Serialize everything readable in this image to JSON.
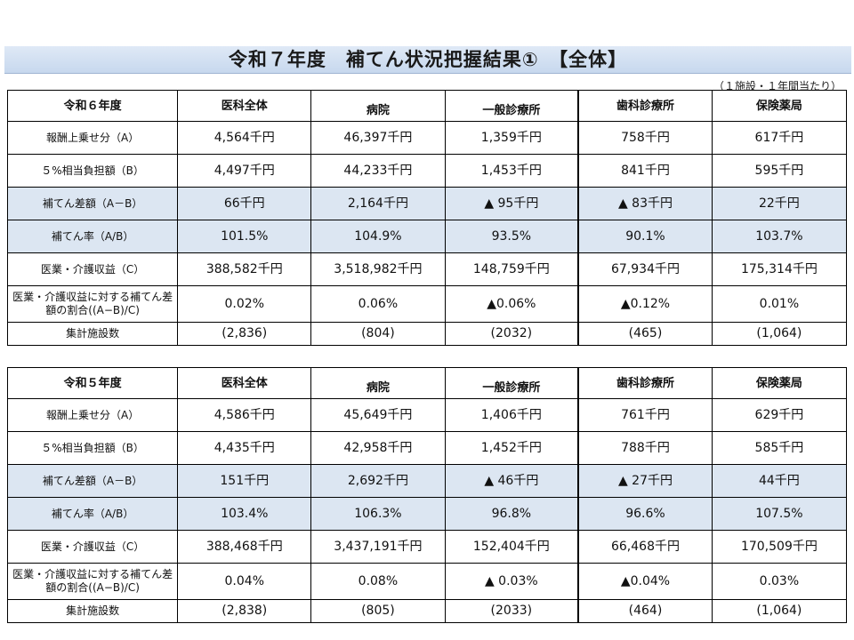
{
  "title": "令和７年度　補てん状況把握結果①　【全体】",
  "unit_note": "（１施設・１年間当たり）",
  "columns": [
    "医科全体",
    "病院",
    "一般診療所",
    "歯科診療所",
    "保険薬局"
  ],
  "rows": [
    "報酬上乗せ分（A）",
    "５%相当負担額（B）",
    "補てん差額（A－B）",
    "補てん率（A/B）",
    "医業・介護収益（C）",
    "医業・介護収益に対する補てん差額の割合((A−B)/C)",
    "集計施設数"
  ],
  "tables": [
    {
      "year": "令和６年度",
      "values": [
        [
          "4,564千円",
          "46,397千円",
          "1,359千円",
          "758千円",
          "617千円"
        ],
        [
          "4,497千円",
          "44,233千円",
          "1,453千円",
          "841千円",
          "595千円"
        ],
        [
          "66千円",
          "2,164千円",
          "▲ 95千円",
          "▲ 83千円",
          "22千円"
        ],
        [
          "101.5%",
          "104.9%",
          "93.5%",
          "90.1%",
          "103.7%"
        ],
        [
          "388,582千円",
          "3,518,982千円",
          "148,759千円",
          "67,934千円",
          "175,314千円"
        ],
        [
          "0.02%",
          "0.06%",
          "▲0.06%",
          "▲0.12%",
          "0.01%"
        ],
        [
          "(2,836)",
          "(804)",
          "(2032)",
          "(465)",
          "(1,064)"
        ]
      ]
    },
    {
      "year": "令和５年度",
      "values": [
        [
          "4,586千円",
          "45,649千円",
          "1,406千円",
          "761千円",
          "629千円"
        ],
        [
          "4,435千円",
          "42,958千円",
          "1,452千円",
          "788千円",
          "585千円"
        ],
        [
          "151千円",
          "2,692千円",
          "▲ 46千円",
          "▲ 27千円",
          "44千円"
        ],
        [
          "103.4%",
          "106.3%",
          "96.8%",
          "96.6%",
          "107.5%"
        ],
        [
          "388,468千円",
          "3,437,191千円",
          "152,404千円",
          "66,468千円",
          "170,509千円"
        ],
        [
          "0.04%",
          "0.08%",
          "▲ 0.03%",
          "▲0.04%",
          "0.03%"
        ],
        [
          "(2,838)",
          "(805)",
          "(2033)",
          "(464)",
          "(1,064)"
        ]
      ]
    }
  ],
  "colors": {
    "title_bg": "#c7d8ee",
    "shade": "#dce6f2",
    "border": "#000000"
  }
}
